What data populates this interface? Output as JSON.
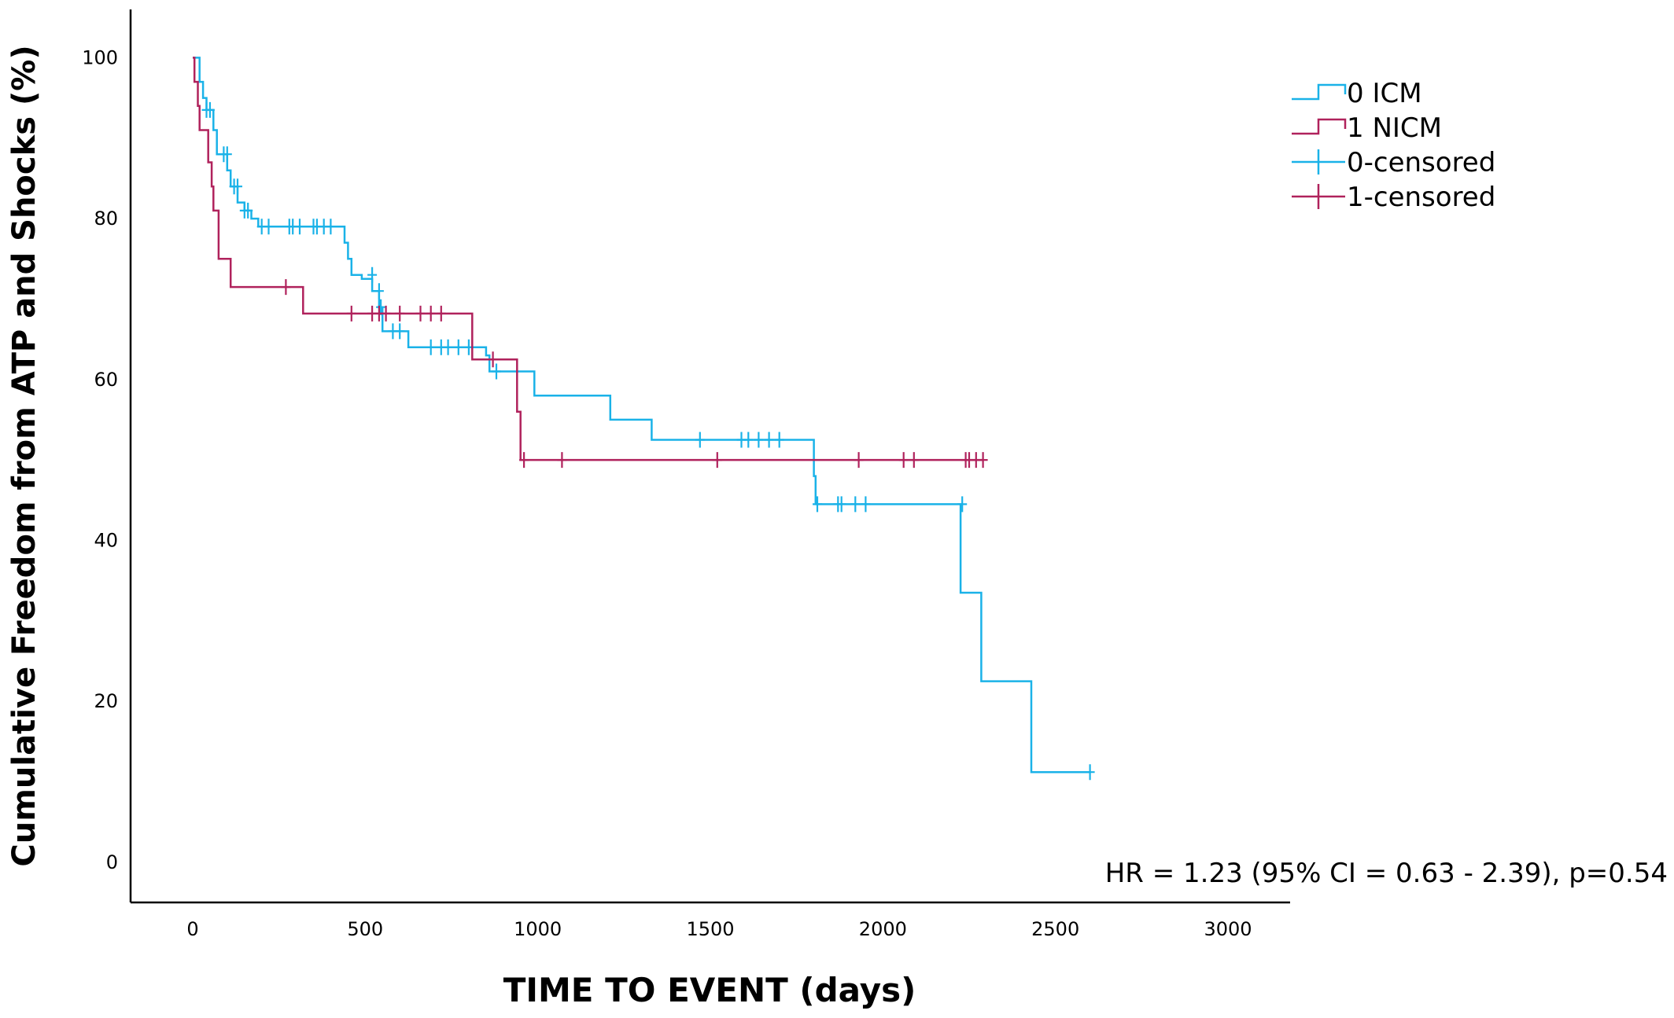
{
  "chart_data": {
    "type": "line",
    "subtype": "kaplan-meier step curve",
    "title": "",
    "xlabel": "TIME TO EVENT (days)",
    "ylabel": "Cumulative Freedom from ATP and Shocks (%)",
    "xlim": [
      -180,
      3180
    ],
    "ylim": [
      -5,
      106
    ],
    "x_ticks": [
      0,
      500,
      1000,
      1500,
      2000,
      2500,
      3000
    ],
    "y_ticks": [
      0,
      20,
      40,
      60,
      80,
      100
    ],
    "grid": false,
    "legend_position": "top-right",
    "legend": [
      {
        "label": "0 ICM",
        "kind": "step",
        "color": "#1ab2e8"
      },
      {
        "label": "1 NICM",
        "kind": "step",
        "color": "#b0225c"
      },
      {
        "label": "0-censored",
        "kind": "censor",
        "color": "#1ab2e8"
      },
      {
        "label": "1-censored",
        "kind": "censor",
        "color": "#b0225c"
      }
    ],
    "annotation": "HR = 1.23 (95% CI = 0.63 - 2.39), p=0.54",
    "series": [
      {
        "name": "0 ICM",
        "color": "#1ab2e8",
        "steps": [
          [
            0,
            100
          ],
          [
            20,
            97
          ],
          [
            30,
            95
          ],
          [
            40,
            93.5
          ],
          [
            60,
            91
          ],
          [
            70,
            88
          ],
          [
            100,
            86
          ],
          [
            110,
            84
          ],
          [
            130,
            82
          ],
          [
            150,
            81
          ],
          [
            170,
            80
          ],
          [
            190,
            79
          ],
          [
            440,
            77
          ],
          [
            450,
            75
          ],
          [
            460,
            73
          ],
          [
            490,
            72.5
          ],
          [
            520,
            71
          ],
          [
            540,
            69
          ],
          [
            550,
            66
          ],
          [
            625,
            64
          ],
          [
            850,
            63
          ],
          [
            860,
            61
          ],
          [
            990,
            58
          ],
          [
            1210,
            55
          ],
          [
            1330,
            52.5
          ],
          [
            1800,
            48
          ],
          [
            1805,
            44.5
          ],
          [
            2225,
            33.5
          ],
          [
            2285,
            22.5
          ],
          [
            2430,
            11.2
          ],
          [
            2600,
            11.2
          ]
        ],
        "censored": [
          [
            40,
            93.5
          ],
          [
            50,
            93.5
          ],
          [
            90,
            88
          ],
          [
            100,
            88
          ],
          [
            120,
            84
          ],
          [
            130,
            84
          ],
          [
            150,
            81
          ],
          [
            160,
            81
          ],
          [
            200,
            79
          ],
          [
            220,
            79
          ],
          [
            280,
            79
          ],
          [
            290,
            79
          ],
          [
            310,
            79
          ],
          [
            350,
            79
          ],
          [
            360,
            79
          ],
          [
            380,
            79
          ],
          [
            400,
            79
          ],
          [
            520,
            73
          ],
          [
            540,
            71
          ],
          [
            545,
            69
          ],
          [
            580,
            66
          ],
          [
            600,
            66
          ],
          [
            690,
            64
          ],
          [
            720,
            64
          ],
          [
            740,
            64
          ],
          [
            770,
            64
          ],
          [
            800,
            64
          ],
          [
            880,
            61
          ],
          [
            1470,
            52.5
          ],
          [
            1590,
            52.5
          ],
          [
            1610,
            52.5
          ],
          [
            1640,
            52.5
          ],
          [
            1670,
            52.5
          ],
          [
            1700,
            52.5
          ],
          [
            1810,
            44.5
          ],
          [
            1870,
            44.5
          ],
          [
            1880,
            44.5
          ],
          [
            1920,
            44.5
          ],
          [
            1950,
            44.5
          ],
          [
            2230,
            44.5
          ],
          [
            2600,
            11.2
          ]
        ]
      },
      {
        "name": "1 NICM",
        "color": "#b0225c",
        "steps": [
          [
            0,
            100
          ],
          [
            5,
            97
          ],
          [
            15,
            94
          ],
          [
            20,
            91
          ],
          [
            40,
            91
          ],
          [
            45,
            87
          ],
          [
            55,
            84
          ],
          [
            60,
            81
          ],
          [
            75,
            75
          ],
          [
            110,
            71.5
          ],
          [
            320,
            68.2
          ],
          [
            810,
            62.5
          ],
          [
            940,
            56
          ],
          [
            950,
            50
          ],
          [
            2290,
            50
          ]
        ],
        "censored": [
          [
            270,
            71.5
          ],
          [
            460,
            68.2
          ],
          [
            520,
            68.2
          ],
          [
            540,
            68.2
          ],
          [
            560,
            68.2
          ],
          [
            600,
            68.2
          ],
          [
            660,
            68.2
          ],
          [
            690,
            68.2
          ],
          [
            720,
            68.2
          ],
          [
            870,
            62.5
          ],
          [
            960,
            50
          ],
          [
            1070,
            50
          ],
          [
            1520,
            50
          ],
          [
            1930,
            50
          ],
          [
            2060,
            50
          ],
          [
            2090,
            50
          ],
          [
            2240,
            50
          ],
          [
            2250,
            50
          ],
          [
            2270,
            50
          ],
          [
            2290,
            50
          ]
        ]
      }
    ]
  }
}
